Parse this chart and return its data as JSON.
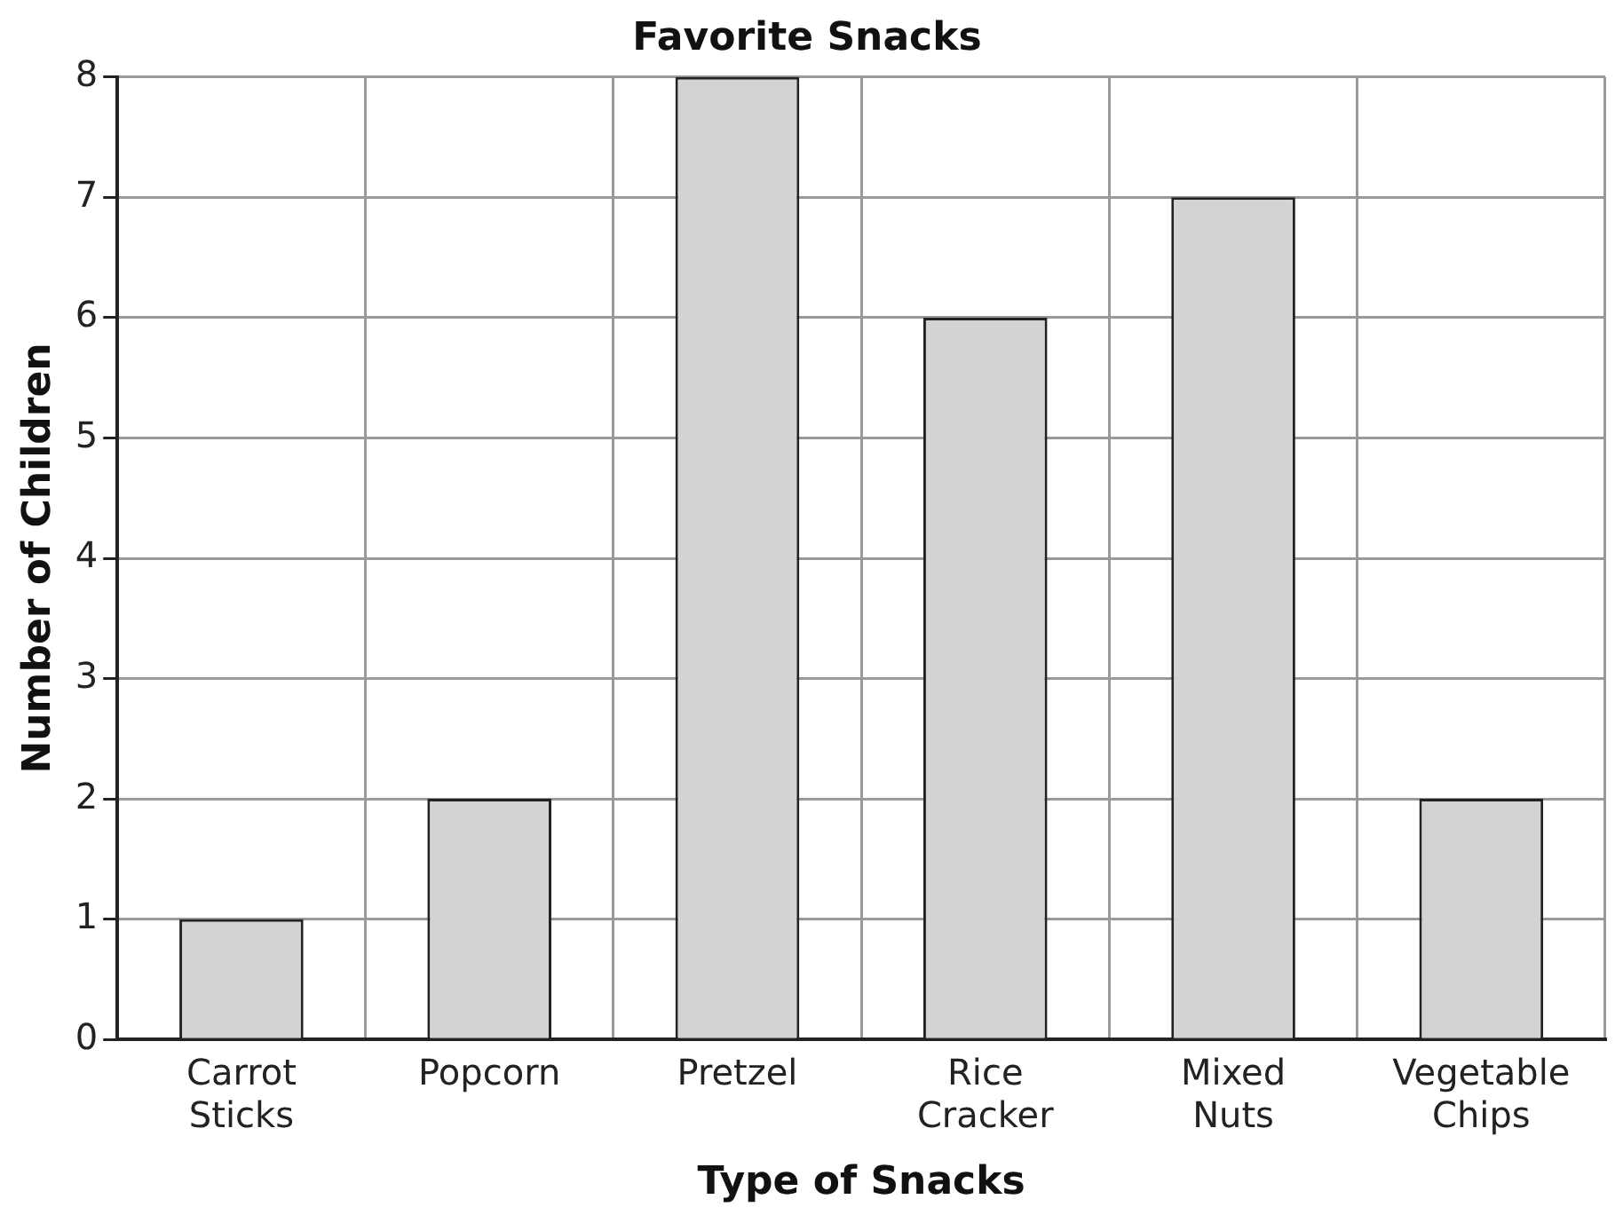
{
  "chart_data": {
    "type": "bar",
    "title": "Favorite Snacks",
    "xlabel": "Type of Snacks",
    "ylabel": "Number of Children",
    "categories": [
      "Carrot Sticks",
      "Popcorn",
      "Pretzel",
      "Rice Cracker",
      "Mixed Nuts",
      "Vegetable Chips"
    ],
    "values": [
      1,
      2,
      8,
      6,
      7,
      2
    ],
    "color": "#d3d3d3",
    "ylim": [
      0,
      8
    ],
    "yticks": [
      0,
      1,
      2,
      3,
      4,
      5,
      6,
      7,
      8
    ],
    "grid": true,
    "legend": false
  }
}
